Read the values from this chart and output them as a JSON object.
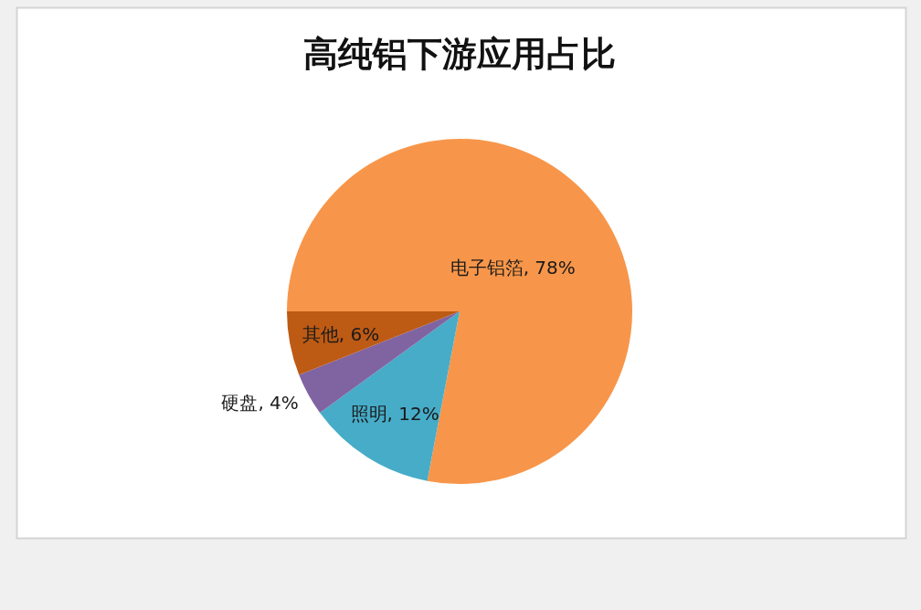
{
  "chart_data": {
    "type": "pie",
    "title": "高纯铝下游应用占比",
    "categories": [
      "电子铝箔",
      "照明",
      "硬盘",
      "其他"
    ],
    "values": [
      78,
      12,
      4,
      6
    ],
    "colors": [
      "#f7964a",
      "#46acc8",
      "#8064a2",
      "#bd5a14"
    ],
    "value_labels": [
      "78%",
      "12%",
      "4%",
      "6%"
    ]
  }
}
